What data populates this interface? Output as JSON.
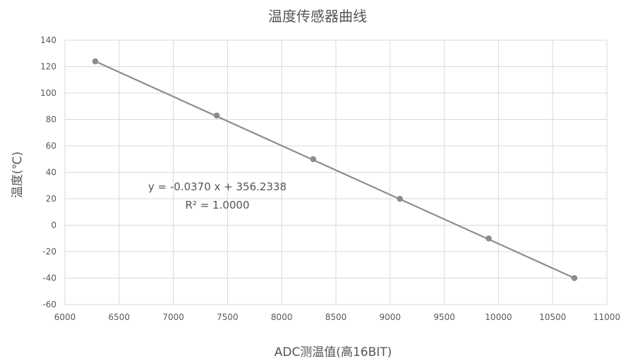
{
  "chart_data": {
    "type": "scatter",
    "title": "温度传感器曲线",
    "xlabel": "ADC测温值(高16BIT)",
    "ylabel": "温度(℃)",
    "xlim": [
      6000,
      11000
    ],
    "ylim": [
      -60,
      140
    ],
    "x_ticks": [
      6000,
      6500,
      7000,
      7500,
      8000,
      8500,
      9000,
      9500,
      10000,
      10500,
      11000
    ],
    "y_ticks": [
      -60,
      -40,
      -20,
      0,
      20,
      40,
      60,
      80,
      100,
      120,
      140
    ],
    "grid": true,
    "series": [
      {
        "points": [
          {
            "x": 6280,
            "y": 124
          },
          {
            "x": 7400,
            "y": 83
          },
          {
            "x": 8290,
            "y": 50
          },
          {
            "x": 9090,
            "y": 20
          },
          {
            "x": 9910,
            "y": -10
          },
          {
            "x": 10700,
            "y": -40
          }
        ]
      }
    ],
    "trendline": {
      "equation": "y = -0.0370 x + 356.2338",
      "r_squared": "R² = 1.0000",
      "slope": -0.037,
      "intercept": 356.2338
    },
    "colors": {
      "series": "#8c8c8c",
      "grid": "#d9d9d9",
      "text": "#595959"
    }
  }
}
